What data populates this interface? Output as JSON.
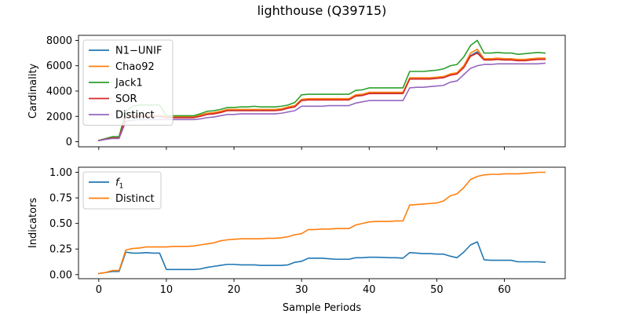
{
  "chart_data": {
    "title": "lighthouse (Q39715)",
    "xlabel": "Sample Periods",
    "x": [
      0,
      1,
      2,
      3,
      4,
      5,
      6,
      7,
      8,
      9,
      10,
      11,
      12,
      13,
      14,
      15,
      16,
      17,
      18,
      19,
      20,
      21,
      22,
      23,
      24,
      25,
      26,
      27,
      28,
      29,
      30,
      31,
      32,
      33,
      34,
      35,
      36,
      37,
      38,
      39,
      40,
      41,
      42,
      43,
      44,
      45,
      46,
      47,
      48,
      49,
      50,
      51,
      52,
      53,
      54,
      55,
      56,
      57,
      58,
      59,
      60,
      61,
      62,
      63,
      64,
      65,
      66
    ],
    "xticks": [
      0,
      10,
      20,
      30,
      40,
      50,
      60
    ],
    "xlim": [
      -3,
      69
    ],
    "panels": [
      {
        "type": "line",
        "ylabel": "Cardinality",
        "ylim": [
          -400,
          8400
        ],
        "yticks": [
          0,
          2000,
          4000,
          6000,
          8000
        ],
        "legend_position": "upper-left",
        "series": [
          {
            "name": "N1−UNIF",
            "color": "#1f77b4",
            "values": [
              100,
              200,
              300,
              300,
              2000,
              2000,
              2000,
              2000,
              2000,
              2000,
              1950,
              1950,
              1950,
              1950,
              1950,
              2050,
              2200,
              2250,
              2350,
              2500,
              2500,
              2500,
              2500,
              2500,
              2500,
              2500,
              2500,
              2550,
              2700,
              2800,
              3300,
              3350,
              3350,
              3350,
              3350,
              3350,
              3350,
              3350,
              3650,
              3700,
              3850,
              3850,
              3850,
              3850,
              3850,
              3850,
              5000,
              5000,
              5000,
              5000,
              5050,
              5100,
              5300,
              5400,
              5900,
              6800,
              7100,
              6500,
              6500,
              6550,
              6500,
              6500,
              6450,
              6450,
              6500,
              6550,
              6550
            ]
          },
          {
            "name": "Chao92",
            "color": "#ff7f0e",
            "values": [
              100,
              200,
              300,
              300,
              2000,
              2050,
              2050,
              2050,
              2050,
              2050,
              2000,
              2000,
              2000,
              2000,
              2000,
              2100,
              2250,
              2300,
              2400,
              2550,
              2550,
              2550,
              2550,
              2550,
              2550,
              2550,
              2550,
              2600,
              2750,
              2850,
              3350,
              3400,
              3400,
              3400,
              3400,
              3400,
              3400,
              3400,
              3700,
              3750,
              3900,
              3900,
              3900,
              3900,
              3900,
              3900,
              5050,
              5050,
              5050,
              5050,
              5100,
              5150,
              5350,
              5450,
              6000,
              7000,
              7300,
              6550,
              6550,
              6600,
              6550,
              6550,
              6500,
              6500,
              6550,
              6600,
              6600
            ]
          },
          {
            "name": "Jack1",
            "color": "#2ca02c",
            "values": [
              100,
              250,
              400,
              400,
              2400,
              2800,
              2900,
              2900,
              2900,
              2900,
              2050,
              2050,
              2050,
              2050,
              2050,
              2200,
              2400,
              2450,
              2550,
              2700,
              2700,
              2750,
              2750,
              2800,
              2750,
              2750,
              2750,
              2800,
              2900,
              3100,
              3700,
              3750,
              3750,
              3750,
              3750,
              3750,
              3750,
              3750,
              4050,
              4100,
              4250,
              4250,
              4250,
              4250,
              4250,
              4250,
              5550,
              5550,
              5550,
              5600,
              5650,
              5750,
              6000,
              6100,
              6700,
              7600,
              8000,
              7000,
              7000,
              7050,
              7000,
              7000,
              6900,
              6950,
              7000,
              7050,
              7000
            ]
          },
          {
            "name": "SOR",
            "color": "#d62728",
            "values": [
              100,
              200,
              300,
              300,
              2000,
              2000,
              2000,
              2000,
              2000,
              2000,
              1900,
              1900,
              1900,
              1900,
              1900,
              2000,
              2150,
              2200,
              2300,
              2450,
              2450,
              2450,
              2450,
              2450,
              2450,
              2450,
              2450,
              2500,
              2650,
              2750,
              3250,
              3300,
              3300,
              3300,
              3300,
              3300,
              3300,
              3300,
              3600,
              3650,
              3800,
              3800,
              3800,
              3800,
              3800,
              3800,
              4950,
              4950,
              4950,
              4950,
              5000,
              5050,
              5250,
              5350,
              5850,
              6750,
              7000,
              6450,
              6450,
              6500,
              6450,
              6450,
              6400,
              6400,
              6450,
              6500,
              6500
            ]
          },
          {
            "name": "Distinct",
            "color": "#9467bd",
            "values": [
              80,
              180,
              250,
              250,
              1600,
              1700,
              1750,
              1750,
              1750,
              1750,
              1750,
              1750,
              1750,
              1750,
              1750,
              1800,
              1900,
              1950,
              2050,
              2150,
              2150,
              2200,
              2200,
              2200,
              2200,
              2200,
              2200,
              2250,
              2350,
              2450,
              2800,
              2800,
              2800,
              2800,
              2850,
              2850,
              2850,
              2850,
              3050,
              3150,
              3250,
              3250,
              3250,
              3250,
              3250,
              3250,
              4250,
              4300,
              4300,
              4350,
              4400,
              4450,
              4700,
              4800,
              5300,
              5800,
              6000,
              6100,
              6100,
              6150,
              6150,
              6150,
              6150,
              6150,
              6150,
              6150,
              6200
            ]
          }
        ]
      },
      {
        "type": "line",
        "ylabel": "Indicators",
        "ylim": [
          -0.04,
          1.05
        ],
        "yticks": [
          0.0,
          0.25,
          0.5,
          0.75,
          1.0
        ],
        "ytick_labels": [
          "0.00",
          "0.25",
          "0.50",
          "0.75",
          "1.00"
        ],
        "legend_position": "upper-left",
        "series": [
          {
            "name": "f",
            "name_sub": "1",
            "color": "#1f77b4",
            "values": [
              0.01,
              0.02,
              0.03,
              0.03,
              0.22,
              0.21,
              0.21,
              0.215,
              0.21,
              0.21,
              0.05,
              0.05,
              0.05,
              0.05,
              0.05,
              0.055,
              0.07,
              0.08,
              0.09,
              0.1,
              0.1,
              0.095,
              0.095,
              0.095,
              0.09,
              0.09,
              0.09,
              0.09,
              0.095,
              0.12,
              0.13,
              0.16,
              0.16,
              0.16,
              0.155,
              0.15,
              0.15,
              0.15,
              0.165,
              0.165,
              0.17,
              0.17,
              0.168,
              0.165,
              0.165,
              0.16,
              0.215,
              0.21,
              0.205,
              0.205,
              0.2,
              0.2,
              0.18,
              0.165,
              0.22,
              0.29,
              0.32,
              0.145,
              0.14,
              0.14,
              0.14,
              0.14,
              0.125,
              0.125,
              0.125,
              0.125,
              0.12
            ]
          },
          {
            "name": "Distinct",
            "color": "#ff7f0e",
            "values": [
              0.01,
              0.02,
              0.04,
              0.04,
              0.24,
              0.255,
              0.26,
              0.27,
              0.27,
              0.27,
              0.27,
              0.275,
              0.275,
              0.275,
              0.28,
              0.29,
              0.3,
              0.31,
              0.33,
              0.34,
              0.345,
              0.35,
              0.35,
              0.35,
              0.35,
              0.355,
              0.355,
              0.36,
              0.37,
              0.39,
              0.4,
              0.44,
              0.44,
              0.445,
              0.445,
              0.45,
              0.45,
              0.45,
              0.485,
              0.5,
              0.515,
              0.52,
              0.52,
              0.52,
              0.525,
              0.525,
              0.68,
              0.685,
              0.69,
              0.695,
              0.7,
              0.72,
              0.77,
              0.79,
              0.85,
              0.93,
              0.96,
              0.975,
              0.98,
              0.98,
              0.985,
              0.985,
              0.985,
              0.99,
              0.995,
              1.0,
              1.0
            ]
          }
        ]
      }
    ]
  }
}
